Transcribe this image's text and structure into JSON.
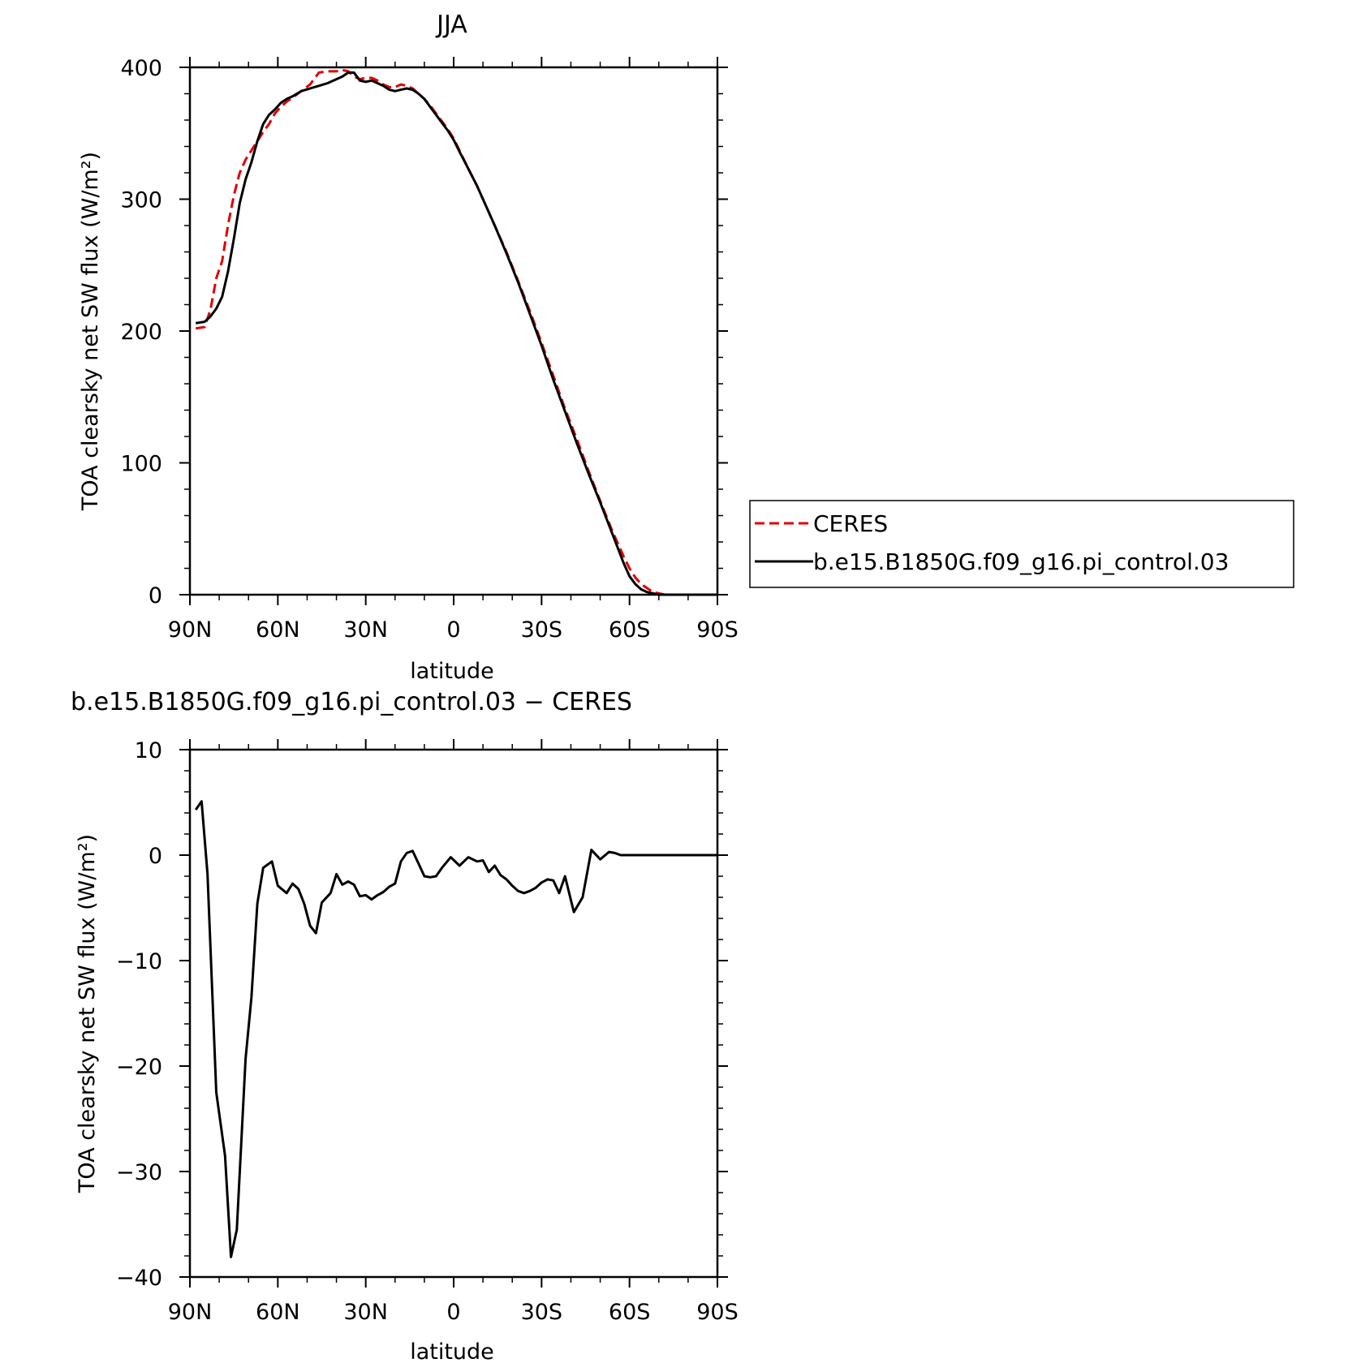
{
  "chart_data": [
    {
      "type": "line",
      "title": "JJA",
      "xlabel": "latitude",
      "ylabel": "TOA clearsky net SW flux (W/m²)",
      "xlim": [
        90,
        -90
      ],
      "ylim": [
        0,
        400
      ],
      "x_ticks": [
        90,
        60,
        30,
        0,
        -30,
        -60,
        -90
      ],
      "x_tick_labels": [
        "90N",
        "60N",
        "30N",
        "0",
        "30S",
        "60S",
        "90S"
      ],
      "y_ticks": [
        0,
        100,
        200,
        300,
        400
      ],
      "y_tick_labels": [
        "0",
        "100",
        "200",
        "300",
        "400"
      ],
      "legend": "right",
      "series": [
        {
          "name": "CERES",
          "color": "#e00000",
          "dash": true,
          "x": [
            88,
            85,
            83,
            81,
            79,
            77,
            75,
            73,
            71,
            69,
            67,
            65,
            63,
            61,
            59,
            57,
            55,
            52,
            49,
            46,
            43,
            40,
            38,
            36,
            34,
            32,
            30,
            28,
            26,
            24,
            22,
            20,
            18,
            16,
            14,
            12,
            10,
            8,
            6,
            4,
            2,
            0,
            -2,
            -5,
            -8,
            -10,
            -14,
            -18,
            -22,
            -26,
            -30,
            -34,
            -38,
            -42,
            -46,
            -50,
            -54,
            -58,
            -60,
            -62,
            -64,
            -66,
            -68,
            -70,
            -72,
            -74,
            -76,
            -78,
            -80,
            -82,
            -85,
            -88,
            -90
          ],
          "values": [
            202,
            203,
            216,
            240,
            253,
            280,
            303,
            320,
            330,
            337,
            344,
            351,
            357,
            365,
            370,
            374,
            377,
            382,
            387,
            396,
            397,
            397,
            398,
            397,
            393,
            391,
            392,
            392,
            390,
            387,
            385,
            385,
            387,
            386,
            384,
            380,
            376,
            371,
            365,
            359,
            353,
            346,
            337,
            323,
            310,
            300,
            280,
            260,
            238,
            215,
            191,
            166,
            141,
            118,
            94,
            71,
            49,
            29,
            20,
            13,
            8,
            5,
            2,
            1,
            0,
            0,
            0,
            0,
            0,
            0,
            0,
            0,
            0
          ]
        },
        {
          "name": "b.e15.B1850G.f09_g16.pi_control.03",
          "color": "#000000",
          "dash": false,
          "x": [
            88,
            85,
            83,
            81,
            79,
            77,
            75,
            73,
            71,
            69,
            67,
            65,
            63,
            61,
            59,
            57,
            55,
            52,
            49,
            46,
            43,
            40,
            38,
            36,
            34,
            32,
            30,
            28,
            26,
            24,
            22,
            20,
            18,
            16,
            14,
            12,
            10,
            8,
            6,
            4,
            2,
            0,
            -2,
            -5,
            -8,
            -10,
            -14,
            -18,
            -22,
            -26,
            -30,
            -34,
            -38,
            -42,
            -46,
            -50,
            -54,
            -58,
            -60,
            -62,
            -64,
            -66,
            -68,
            -70,
            -72,
            -74,
            -76,
            -78,
            -80,
            -82,
            -85,
            -88,
            -90
          ],
          "values": [
            206,
            207,
            211,
            217,
            226,
            245,
            270,
            297,
            315,
            328,
            344,
            357,
            364,
            368,
            373,
            376,
            378,
            382,
            384,
            386,
            388,
            391,
            393,
            396,
            396,
            390,
            389,
            390,
            388,
            386,
            383,
            382,
            383,
            384,
            383,
            380,
            376,
            370,
            364,
            358,
            352,
            345,
            336,
            323,
            310,
            300,
            280,
            259,
            237,
            213,
            189,
            163,
            139,
            115,
            92,
            70,
            47,
            24,
            14,
            8,
            4,
            2,
            1,
            0,
            0,
            0,
            0,
            0,
            0,
            0,
            0,
            0,
            0
          ]
        }
      ]
    },
    {
      "type": "line",
      "title": "b.e15.B1850G.f09_g16.pi_control.03 − CERES",
      "xlabel": "latitude",
      "ylabel": "TOA clearsky net SW flux (W/m²)",
      "xlim": [
        90,
        -90
      ],
      "ylim": [
        -40,
        10
      ],
      "x_ticks": [
        90,
        60,
        30,
        0,
        -30,
        -60,
        -90
      ],
      "x_tick_labels": [
        "90N",
        "60N",
        "30N",
        "0",
        "30S",
        "60S",
        "90S"
      ],
      "y_ticks": [
        -40,
        -30,
        -20,
        -10,
        0,
        10
      ],
      "y_tick_labels": [
        "−40",
        "−30",
        "−20",
        "−10",
        "0",
        "10"
      ],
      "series": [
        {
          "name": "",
          "color": "#000000",
          "dash": false,
          "x": [
            88,
            86,
            84,
            81,
            78,
            76,
            74,
            71,
            69,
            67,
            65,
            62,
            60,
            57,
            55,
            53,
            51,
            49,
            47,
            45,
            42,
            40,
            38,
            36,
            34,
            32,
            30,
            28,
            26,
            24,
            22,
            20,
            18,
            16,
            14,
            12,
            10,
            8,
            6,
            4,
            1,
            -2,
            -5,
            -8,
            -10,
            -12,
            -14,
            -16,
            -18,
            -20,
            -22,
            -24,
            -26,
            -28,
            -30,
            -32,
            -34,
            -36,
            -38,
            -41,
            -44,
            -47,
            -50,
            -53,
            -55,
            -57,
            -60,
            -61,
            -62,
            -64,
            -66,
            -68,
            -69,
            -71,
            -73,
            -76,
            -78,
            -81,
            -84,
            -87,
            -90
          ],
          "values": [
            4.3,
            5.1,
            -1.8,
            -22.5,
            -28.5,
            -38.1,
            -35.5,
            -19.3,
            -13.5,
            -4.6,
            -1.2,
            -0.6,
            -2.9,
            -3.6,
            -2.7,
            -3.2,
            -4.6,
            -6.7,
            -7.4,
            -4.5,
            -3.6,
            -1.8,
            -2.8,
            -2.5,
            -2.8,
            -3.9,
            -3.8,
            -4.2,
            -3.8,
            -3.5,
            -3.0,
            -2.7,
            -0.6,
            0.2,
            0.4,
            -0.8,
            -2.0,
            -2.1,
            -2.0,
            -1.2,
            -0.2,
            -1.0,
            -0.2,
            -0.6,
            -0.5,
            -1.6,
            -1.0,
            -1.9,
            -2.3,
            -2.9,
            -3.4,
            -3.6,
            -3.4,
            -3.1,
            -2.6,
            -2.3,
            -2.4,
            -3.6,
            -2.0,
            -5.4,
            -4.0,
            0.5,
            -0.4,
            0.3,
            0.2,
            0.0,
            0.0,
            0.0,
            0.0,
            0.0,
            0.0,
            0.0,
            0.0,
            0.0,
            0.0,
            0.0,
            0.0,
            0.0,
            0.0,
            0.0,
            0.0
          ]
        }
      ]
    }
  ]
}
